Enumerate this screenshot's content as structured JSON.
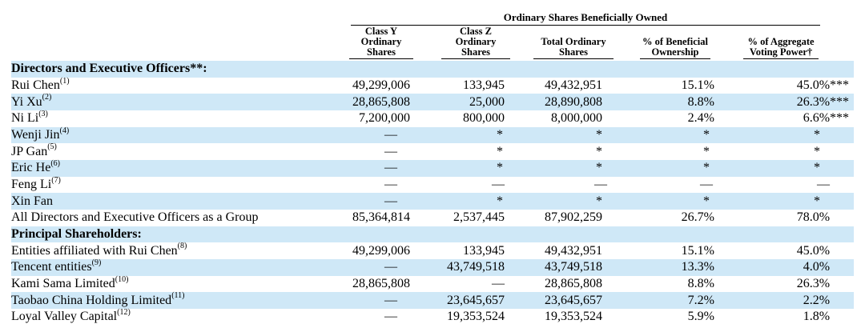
{
  "header": {
    "group_title": "Ordinary Shares Beneficially Owned",
    "columns": [
      [
        "Class Y",
        "Ordinary",
        "Shares"
      ],
      [
        "Class Z",
        "Ordinary",
        "Shares"
      ],
      [
        "Total Ordinary",
        "Shares"
      ],
      [
        "% of Beneficial",
        "Ownership"
      ],
      [
        "% of Aggregate",
        "Voting Power†"
      ]
    ]
  },
  "rows": [
    {
      "label": "Directors and Executive Officers**:",
      "section": true
    },
    {
      "label": "Rui Chen",
      "note": "(1)",
      "indent": true,
      "cells": [
        "49,299,006",
        "133,945",
        "49,432,951",
        "15.1%",
        "45.0%***"
      ]
    },
    {
      "label": "Yi Xu",
      "note": "(2)",
      "indent": true,
      "cells": [
        "28,865,808",
        "25,000",
        "28,890,808",
        "8.8%",
        "26.3%***"
      ]
    },
    {
      "label": "Ni Li",
      "note": "(3)",
      "indent": true,
      "cells": [
        "7,200,000",
        "800,000",
        "8,000,000",
        "2.4%",
        "6.6%***"
      ]
    },
    {
      "label": "Wenji Jin",
      "note": "(4)",
      "indent": true,
      "cells": [
        "—",
        "*",
        "*",
        "*",
        "*"
      ]
    },
    {
      "label": "JP Gan",
      "note": "(5)",
      "indent": true,
      "cells": [
        "—",
        "*",
        "*",
        "*",
        "*"
      ]
    },
    {
      "label": "Eric He",
      "note": "(6)",
      "indent": true,
      "cells": [
        "—",
        "*",
        "*",
        "*",
        "*"
      ]
    },
    {
      "label": "Feng Li",
      "note": "(7)",
      "indent": true,
      "cells": [
        "—",
        "—",
        "—",
        "—",
        "—"
      ]
    },
    {
      "label": "Xin Fan",
      "note": "",
      "indent": true,
      "cells": [
        "—",
        "*",
        "*",
        "*",
        "*"
      ]
    },
    {
      "label": "All Directors and Executive Officers as a Group",
      "note": "",
      "indent": true,
      "cells": [
        "85,364,814",
        "2,537,445",
        "87,902,259",
        "26.7%",
        "78.0%"
      ]
    },
    {
      "label": "Principal Shareholders:",
      "section": true
    },
    {
      "label": "Entities affiliated with Rui Chen",
      "note": "(8)",
      "indent": false,
      "cells": [
        "49,299,006",
        "133,945",
        "49,432,951",
        "15.1%",
        "45.0%"
      ]
    },
    {
      "label": "Tencent entities",
      "note": "(9)",
      "indent": false,
      "cells": [
        "—",
        "43,749,518",
        "43,749,518",
        "13.3%",
        "4.0%"
      ]
    },
    {
      "label": "Kami Sama Limited",
      "note": "(10)",
      "indent": false,
      "cells": [
        "28,865,808",
        "—",
        "28,865,808",
        "8.8%",
        "26.3%"
      ]
    },
    {
      "label": "Taobao China Holding Limited",
      "note": "(11)",
      "indent": false,
      "cells": [
        "—",
        "23,645,657",
        "23,645,657",
        "7.2%",
        "2.2%"
      ]
    },
    {
      "label": "Loyal Valley Capital",
      "note": "(12)",
      "indent": false,
      "cells": [
        "—",
        "19,353,524",
        "19,353,524",
        "5.9%",
        "1.8%"
      ]
    }
  ]
}
